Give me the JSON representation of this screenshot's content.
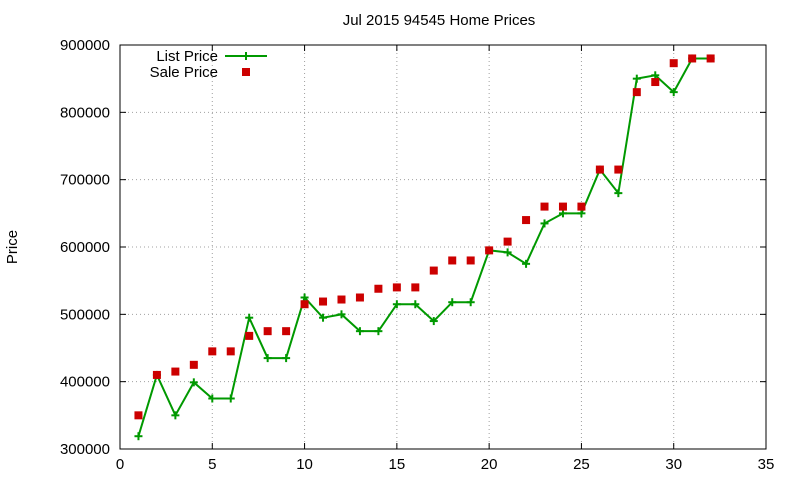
{
  "chart_data": {
    "type": "line",
    "title": "Jul 2015 94545 Home Prices",
    "xlabel": "",
    "ylabel": "Price",
    "xlim": [
      0,
      35
    ],
    "ylim": [
      300000,
      900000
    ],
    "xticks": [
      0,
      5,
      10,
      15,
      20,
      25,
      30,
      35
    ],
    "yticks": [
      300000,
      400000,
      500000,
      600000,
      700000,
      800000,
      900000
    ],
    "grid": true,
    "legend_position": "top-left",
    "series": [
      {
        "name": "List Price",
        "kind": "line-points",
        "color": "#009900",
        "marker": "plus",
        "x": [
          1,
          2,
          3,
          4,
          5,
          6,
          7,
          8,
          9,
          10,
          11,
          12,
          13,
          14,
          15,
          16,
          17,
          18,
          19,
          20,
          21,
          22,
          23,
          24,
          25,
          26,
          27,
          28,
          29,
          30,
          31,
          32
        ],
        "y": [
          319000,
          410000,
          350000,
          399000,
          375000,
          375000,
          495000,
          435000,
          435000,
          525000,
          495000,
          500000,
          475000,
          475000,
          515000,
          515000,
          490000,
          518000,
          518000,
          595000,
          592000,
          575000,
          635000,
          650000,
          650000,
          715000,
          680000,
          850000,
          855000,
          830000,
          880000,
          880000
        ]
      },
      {
        "name": "Sale Price",
        "kind": "points",
        "color": "#cc0000",
        "marker": "square",
        "x": [
          1,
          2,
          3,
          4,
          5,
          6,
          7,
          8,
          9,
          10,
          11,
          12,
          13,
          14,
          15,
          16,
          17,
          18,
          19,
          20,
          21,
          22,
          23,
          24,
          25,
          26,
          27,
          28,
          29,
          30,
          31,
          32
        ],
        "y": [
          350000,
          410000,
          415000,
          425000,
          445000,
          445000,
          468000,
          475000,
          475000,
          515000,
          519000,
          522000,
          525000,
          538000,
          540000,
          540000,
          565000,
          580000,
          580000,
          595000,
          608000,
          640000,
          660000,
          660000,
          660000,
          715000,
          715000,
          830000,
          845000,
          873000,
          880000,
          880000
        ]
      }
    ]
  }
}
